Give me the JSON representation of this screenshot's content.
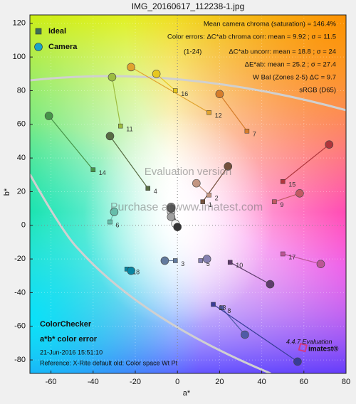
{
  "chart_data": {
    "type": "scatter",
    "title": "IMG_20160617_112238-1.jpg",
    "x_label": "a*",
    "y_label": "b*",
    "xlim": [
      -70,
      80
    ],
    "ylim": [
      -88,
      125
    ],
    "xticks": [
      -60,
      -40,
      -20,
      0,
      20,
      40,
      60,
      80
    ],
    "yticks": [
      -80,
      -60,
      -40,
      -20,
      0,
      20,
      40,
      60,
      80,
      100,
      120
    ],
    "grid": true,
    "legend": "upper left",
    "labels": [
      1,
      2,
      3,
      4,
      5,
      6,
      7,
      8,
      9,
      10,
      11,
      12,
      13,
      14,
      15,
      16,
      17,
      18,
      null,
      null,
      null,
      null,
      null,
      null
    ],
    "patch_colors": [
      "#73503c",
      "#c29682",
      "#627a9d",
      "#576c43",
      "#8580b1",
      "#67bdaa",
      "#d67e2c",
      "#505ba6",
      "#c15a63",
      "#5e3c6c",
      "#9dbc40",
      "#e0a32e",
      "#383d96",
      "#469449",
      "#af363c",
      "#e7c71f",
      "#bb5695",
      "#0885a1",
      "#f3f3f2",
      "#c8c8c8",
      "#a0a0a0",
      "#7a7a79",
      "#555555",
      "#343434"
    ],
    "series": [
      {
        "name": "Ideal",
        "marker": "square",
        "color": "#3d6e55",
        "x": [
          12,
          15,
          -1,
          -14,
          11,
          -32,
          33,
          21,
          46,
          25,
          -27,
          15,
          17,
          -40,
          50,
          -1,
          50,
          -24,
          0,
          0,
          0,
          0,
          0,
          0
        ],
        "y": [
          14,
          18,
          -21,
          22,
          -21,
          2,
          56,
          -49,
          14,
          -22,
          59,
          67,
          -47,
          33,
          26,
          80,
          -17,
          -26,
          0,
          0,
          0,
          0,
          0,
          0
        ]
      },
      {
        "name": "Camera",
        "marker": "circle",
        "color": "#1aa3c8",
        "x": [
          24,
          9,
          -6,
          -32,
          14,
          -30,
          20,
          32,
          58,
          44,
          -31,
          -22,
          57,
          -61,
          72,
          -10,
          68,
          -22,
          -1,
          -3,
          -3,
          -3,
          -3,
          0
        ],
        "y": [
          35,
          25,
          -21,
          53,
          -20,
          8,
          78,
          -65,
          19,
          -35,
          88,
          94,
          -81,
          65,
          48,
          90,
          -23,
          -27,
          1,
          8,
          5,
          11,
          10,
          -1
        ]
      }
    ],
    "stats": [
      "Mean camera chroma (saturation) = 146.4%",
      "Color errors: ΔC*ab chroma corr: mean = 9.92 ; σ = 11.5",
      "(1-24)",
      "ΔC*ab uncorr: mean = 18.8 ; σ = 24",
      "ΔE*ab: mean = 25.2 ; σ = 27.4",
      "W Bal (Zones 2-5) ΔC = 9.7",
      "sRGB (D65)"
    ],
    "footer": [
      "ColorChecker",
      "a*b* color error",
      "21-Jun-2016 15:51:10",
      "Reference: X-Rite default old: Color space Wt Pt"
    ],
    "watermarks": [
      "Evaluation version",
      "Purchase at www.imatest.com"
    ],
    "branding": [
      "4.4.7  Evaluation",
      "imatest®"
    ]
  }
}
